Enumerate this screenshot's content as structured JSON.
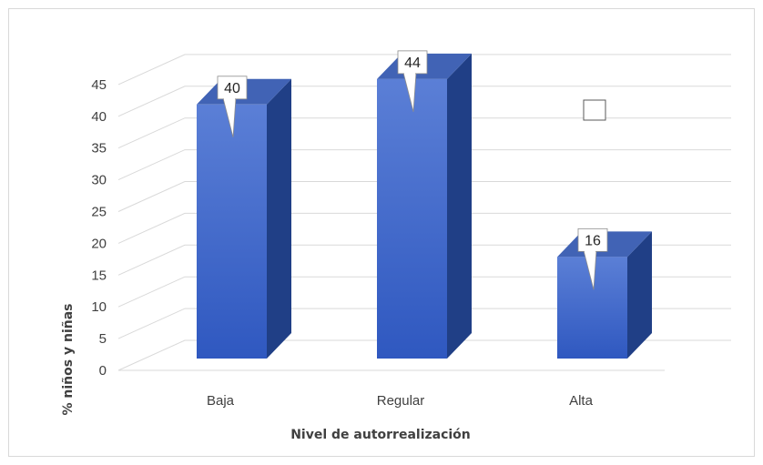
{
  "chart_data": {
    "type": "bar",
    "categories": [
      "Baja",
      "Regular",
      "Alta"
    ],
    "values": [
      40,
      44,
      16
    ],
    "data_labels": [
      "40",
      "44",
      "16"
    ],
    "xlabel": "Nivel de autorrealización",
    "ylabel": "% niños y niñas",
    "ylim": [
      0,
      45
    ],
    "yticks": [
      "0",
      "5",
      "10",
      "15",
      "20",
      "25",
      "30",
      "35",
      "40",
      "45"
    ],
    "grid": true,
    "legend": "none",
    "style": "3d-column",
    "colors": {
      "bar_top": "#5b7fd6",
      "bar_bottom": "#2f58c0",
      "bar_side": "#203f86",
      "bar_cap": "#4163b5",
      "grid": "#d9d9d9"
    }
  }
}
